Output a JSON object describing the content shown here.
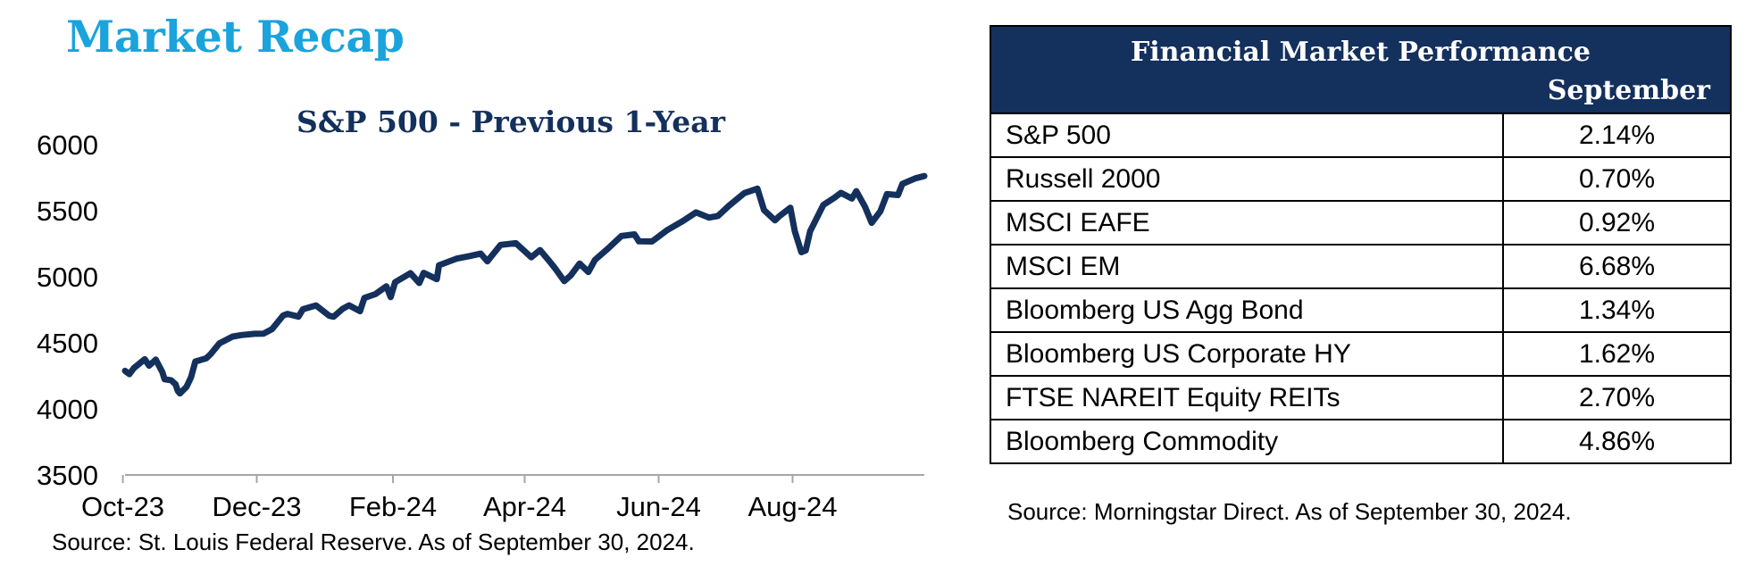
{
  "page": {
    "title": "Market Recap"
  },
  "chart_data": {
    "type": "line",
    "title": "S&P 500 - Previous 1-Year",
    "xlabel": "",
    "ylabel": "",
    "x_range": [
      "2023-10-02",
      "2024-09-30"
    ],
    "ylim": [
      3500,
      6000
    ],
    "y_ticks": [
      6000,
      5500,
      5000,
      4500,
      4000,
      3500
    ],
    "x_ticks": [
      {
        "date": "2023-10-01",
        "label": "Oct-23"
      },
      {
        "date": "2023-12-01",
        "label": "Dec-23"
      },
      {
        "date": "2024-02-01",
        "label": "Feb-24"
      },
      {
        "date": "2024-04-01",
        "label": "Apr-24"
      },
      {
        "date": "2024-06-01",
        "label": "Jun-24"
      },
      {
        "date": "2024-08-01",
        "label": "Aug-24"
      }
    ],
    "grid": false,
    "legend": "none",
    "line_color": "#14305c",
    "series": [
      {
        "points": [
          [
            "2023-10-02",
            4288
          ],
          [
            "2023-10-04",
            4263
          ],
          [
            "2023-10-06",
            4308
          ],
          [
            "2023-10-11",
            4376
          ],
          [
            "2023-10-13",
            4327
          ],
          [
            "2023-10-16",
            4373
          ],
          [
            "2023-10-19",
            4278
          ],
          [
            "2023-10-20",
            4224
          ],
          [
            "2023-10-23",
            4217
          ],
          [
            "2023-10-25",
            4186
          ],
          [
            "2023-10-26",
            4137
          ],
          [
            "2023-10-27",
            4117
          ],
          [
            "2023-10-30",
            4166
          ],
          [
            "2023-11-01",
            4237
          ],
          [
            "2023-11-03",
            4358
          ],
          [
            "2023-11-08",
            4383
          ],
          [
            "2023-11-10",
            4415
          ],
          [
            "2023-11-14",
            4496
          ],
          [
            "2023-11-20",
            4547
          ],
          [
            "2023-11-24",
            4559
          ],
          [
            "2023-11-30",
            4568
          ],
          [
            "2023-12-04",
            4569
          ],
          [
            "2023-12-08",
            4604
          ],
          [
            "2023-12-13",
            4707
          ],
          [
            "2023-12-15",
            4719
          ],
          [
            "2023-12-20",
            4698
          ],
          [
            "2023-12-22",
            4754
          ],
          [
            "2023-12-28",
            4783
          ],
          [
            "2024-01-03",
            4705
          ],
          [
            "2024-01-05",
            4697
          ],
          [
            "2024-01-09",
            4756
          ],
          [
            "2024-01-12",
            4784
          ],
          [
            "2024-01-17",
            4739
          ],
          [
            "2024-01-19",
            4840
          ],
          [
            "2024-01-24",
            4868
          ],
          [
            "2024-01-29",
            4928
          ],
          [
            "2024-01-31",
            4846
          ],
          [
            "2024-02-02",
            4959
          ],
          [
            "2024-02-09",
            5027
          ],
          [
            "2024-02-13",
            4953
          ],
          [
            "2024-02-15",
            5030
          ],
          [
            "2024-02-21",
            4982
          ],
          [
            "2024-02-22",
            5087
          ],
          [
            "2024-03-01",
            5137
          ],
          [
            "2024-03-07",
            5157
          ],
          [
            "2024-03-12",
            5175
          ],
          [
            "2024-03-15",
            5117
          ],
          [
            "2024-03-21",
            5241
          ],
          [
            "2024-03-28",
            5254
          ],
          [
            "2024-04-04",
            5147
          ],
          [
            "2024-04-08",
            5202
          ],
          [
            "2024-04-12",
            5123
          ],
          [
            "2024-04-15",
            5061
          ],
          [
            "2024-04-19",
            4967
          ],
          [
            "2024-04-22",
            5010
          ],
          [
            "2024-04-26",
            5100
          ],
          [
            "2024-04-30",
            5036
          ],
          [
            "2024-05-03",
            5128
          ],
          [
            "2024-05-09",
            5214
          ],
          [
            "2024-05-15",
            5308
          ],
          [
            "2024-05-21",
            5321
          ],
          [
            "2024-05-23",
            5268
          ],
          [
            "2024-05-29",
            5267
          ],
          [
            "2024-06-05",
            5354
          ],
          [
            "2024-06-12",
            5421
          ],
          [
            "2024-06-18",
            5487
          ],
          [
            "2024-06-24",
            5448
          ],
          [
            "2024-06-28",
            5460
          ],
          [
            "2024-07-03",
            5537
          ],
          [
            "2024-07-10",
            5633
          ],
          [
            "2024-07-16",
            5667
          ],
          [
            "2024-07-19",
            5505
          ],
          [
            "2024-07-24",
            5427
          ],
          [
            "2024-07-26",
            5459
          ],
          [
            "2024-07-31",
            5522
          ],
          [
            "2024-08-02",
            5346
          ],
          [
            "2024-08-05",
            5186
          ],
          [
            "2024-08-07",
            5199
          ],
          [
            "2024-08-09",
            5344
          ],
          [
            "2024-08-15",
            5543
          ],
          [
            "2024-08-20",
            5597
          ],
          [
            "2024-08-23",
            5635
          ],
          [
            "2024-08-28",
            5592
          ],
          [
            "2024-08-30",
            5648
          ],
          [
            "2024-09-03",
            5529
          ],
          [
            "2024-09-06",
            5408
          ],
          [
            "2024-09-10",
            5496
          ],
          [
            "2024-09-13",
            5626
          ],
          [
            "2024-09-18",
            5618
          ],
          [
            "2024-09-20",
            5703
          ],
          [
            "2024-09-26",
            5745
          ],
          [
            "2024-09-30",
            5762
          ]
        ]
      }
    ]
  },
  "chart_source": "Source: St. Louis Federal Reserve. As of September 30, 2024.",
  "table": {
    "title": "Financial Market Performance",
    "period": "September",
    "rows": [
      {
        "index": "S&P 500",
        "return": "2.14%"
      },
      {
        "index": "Russell 2000",
        "return": "0.70%"
      },
      {
        "index": "MSCI EAFE",
        "return": "0.92%"
      },
      {
        "index": "MSCI EM",
        "return": "6.68%"
      },
      {
        "index": "Bloomberg US Agg Bond",
        "return": "1.34%"
      },
      {
        "index": "Bloomberg US Corporate HY",
        "return": "1.62%"
      },
      {
        "index": "FTSE NAREIT Equity REITs",
        "return": "2.70%"
      },
      {
        "index": "Bloomberg Commodity",
        "return": "4.86%"
      }
    ],
    "source": "Source: Morningstar Direct. As of September 30, 2024."
  }
}
